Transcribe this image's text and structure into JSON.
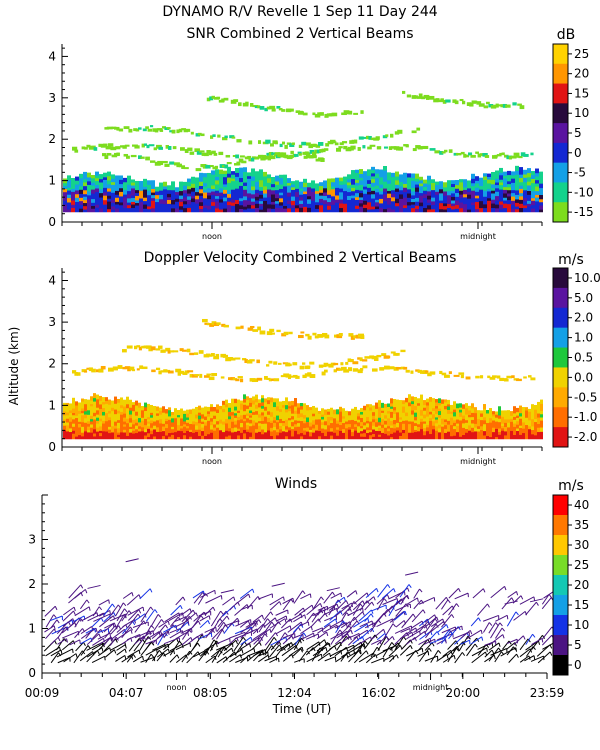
{
  "header": {
    "line1": "DYNAMO R/V Revelle    1 Sep 11 Day 244",
    "line2": "SNR Combined 2 Vertical Beams"
  },
  "y_axis_label": "Altitude (km)",
  "x_axis_label": "Time (UT)",
  "chart_data": [
    {
      "id": "snr",
      "type": "heatmap",
      "title": "SNR Combined 2 Vertical Beams",
      "ylabel": "Altitude (km)",
      "xlim": [
        0,
        24
      ],
      "ylim": [
        0,
        4.3
      ],
      "y_ticks": [
        "0",
        "1",
        "2",
        "3",
        "4"
      ],
      "x_markers": [
        {
          "label": "noon",
          "x": 7.5
        },
        {
          "label": "midnight",
          "x": 20.8
        }
      ],
      "colorbar": {
        "unit": "dB",
        "labels": [
          "25",
          "20",
          "15",
          "10",
          "5",
          "0",
          "-5",
          "-10",
          "-15"
        ],
        "colors": [
          "#ffd200",
          "#ff9600",
          "#e11414",
          "#280a3c",
          "#5a14a0",
          "#1428d2",
          "#14a0e6",
          "#14d28c",
          "#7ddc1e"
        ]
      }
    },
    {
      "id": "doppler",
      "type": "heatmap",
      "title": "Doppler Velocity Combined 2 Vertical Beams",
      "ylabel": "Altitude (km)",
      "xlim": [
        0,
        24
      ],
      "ylim": [
        0,
        4.3
      ],
      "y_ticks": [
        "0",
        "1",
        "2",
        "3",
        "4"
      ],
      "x_markers": [
        {
          "label": "noon",
          "x": 7.5
        },
        {
          "label": "midnight",
          "x": 20.8
        }
      ],
      "colorbar": {
        "unit": "m/s",
        "labels": [
          "10.0",
          "5.0",
          "2.0",
          "1.0",
          "0.5",
          "0.0",
          "-0.5",
          "-1.0",
          "-2.0"
        ],
        "colors": [
          "#280a3c",
          "#5a14a0",
          "#1428d2",
          "#14a0e6",
          "#1ec83c",
          "#f0d200",
          "#ffaa00",
          "#ff6e00",
          "#e11414"
        ]
      }
    },
    {
      "id": "winds",
      "type": "scatter",
      "title": "Winds",
      "xlabel": "Time (UT)",
      "ylabel": "Altitude (km)",
      "xlim": [
        0.15,
        24
      ],
      "ylim": [
        0,
        4
      ],
      "y_ticks": [
        "0",
        "1",
        "2",
        "3"
      ],
      "x_ticks": [
        "00:09",
        "04:07",
        "08:05",
        "12:04",
        "16:02",
        "20:00",
        "23:59"
      ],
      "x_markers": [
        {
          "label": "noon",
          "x": 6.5
        },
        {
          "label": "midnight",
          "x": 18.5
        }
      ],
      "colorbar": {
        "unit": "m/s",
        "labels": [
          "40",
          "35",
          "30",
          "25",
          "20",
          "15",
          "10",
          "5",
          "0"
        ],
        "colors": [
          "#ff0000",
          "#ff7800",
          "#ffc800",
          "#78dc28",
          "#14c8b4",
          "#14a0e6",
          "#1432e6",
          "#4b1482",
          "#000000"
        ]
      }
    }
  ]
}
